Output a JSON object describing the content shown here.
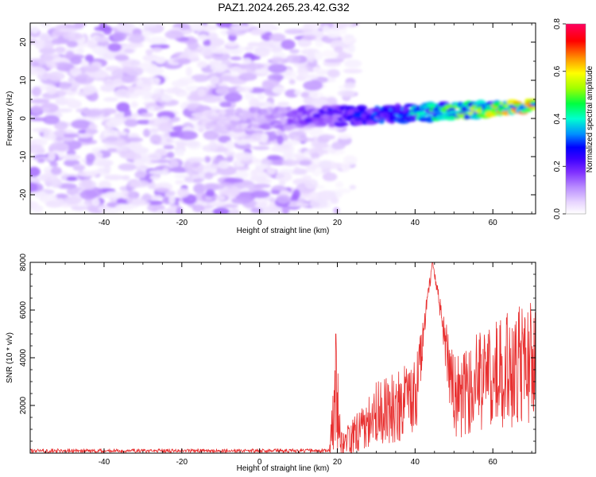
{
  "title": "PAZ1.2024.265.23.42.G32",
  "chart_data": [
    {
      "type": "heatmap",
      "xlabel": "Height of straight line (km)",
      "ylabel": "Frequency (Hz)",
      "xlim": [
        -59,
        71
      ],
      "ylim": [
        -25,
        25
      ],
      "xticks": [
        -40,
        -20,
        0,
        20,
        40,
        60
      ],
      "yticks": [
        -20,
        -10,
        0,
        10,
        20
      ],
      "colorbar": {
        "label": "Normalized spectral amplitude",
        "range": [
          0,
          0.8
        ],
        "ticks": [
          "0.0",
          "0.2",
          "0.4",
          "0.6",
          "0.8"
        ],
        "colormap": [
          "#ffffff",
          "#e8d6ff",
          "#b98cff",
          "#7f2fff",
          "#3b00ff",
          "#0000ff",
          "#0090ff",
          "#00ffd0",
          "#00ff40",
          "#a0ff00",
          "#ffff00",
          "#ff9000",
          "#ff0000",
          "#ff0060"
        ]
      },
      "features": [
        {
          "description": "diffuse noise",
          "x_range": [
            -59,
            18
          ],
          "y_range": [
            -25,
            25
          ],
          "amplitude": 0.05
        },
        {
          "description": "signal ridge",
          "x_range": [
            -15,
            71
          ],
          "frequency_start": -1,
          "frequency_end": 3,
          "amplitude_start": 0.05,
          "amplitude_end": 0.6
        }
      ]
    },
    {
      "type": "line",
      "xlabel": "Height of straight line (km)",
      "ylabel": "SNR (10 * v/v)",
      "xlim": [
        -59,
        71
      ],
      "ylim": [
        0,
        8000
      ],
      "xticks": [
        -40,
        -20,
        0,
        20,
        40,
        60
      ],
      "yticks": [
        2000,
        4000,
        6000,
        8000
      ],
      "color": "#e83030",
      "envelope": [
        {
          "x": -59,
          "mean": 100,
          "amp": 80
        },
        {
          "x": 18,
          "mean": 100,
          "amp": 80
        },
        {
          "x": 19.6,
          "mean": 2500,
          "amp": 2400
        },
        {
          "x": 21,
          "mean": 400,
          "amp": 600
        },
        {
          "x": 26,
          "mean": 1000,
          "amp": 900
        },
        {
          "x": 30,
          "mean": 1700,
          "amp": 1300
        },
        {
          "x": 40,
          "mean": 2200,
          "amp": 1700
        },
        {
          "x": 44.5,
          "mean": 8000,
          "amp": 0
        },
        {
          "x": 50,
          "mean": 2300,
          "amp": 1700
        },
        {
          "x": 60,
          "mean": 3400,
          "amp": 2400
        },
        {
          "x": 71,
          "mean": 3800,
          "amp": 2600
        }
      ]
    }
  ]
}
